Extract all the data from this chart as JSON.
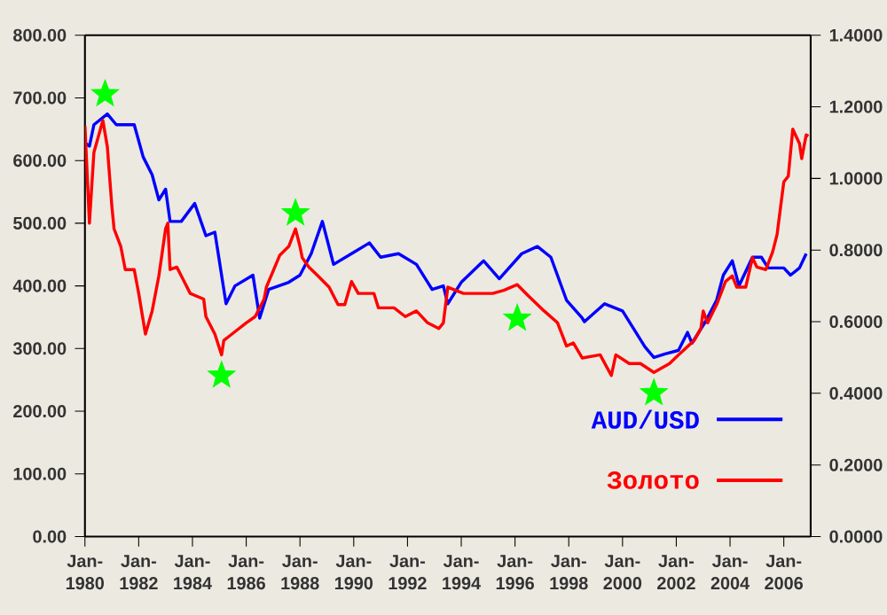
{
  "chart_data": {
    "type": "line",
    "xlim": [
      "1980-01",
      "2007-01"
    ],
    "xticks": [
      {
        "value": "1980-01",
        "label": "Jan-1980"
      },
      {
        "value": "1982-01",
        "label": "Jan-1982"
      },
      {
        "value": "1984-01",
        "label": "Jan-1984"
      },
      {
        "value": "1986-01",
        "label": "Jan-1986"
      },
      {
        "value": "1988-01",
        "label": "Jan-1988"
      },
      {
        "value": "1990-01",
        "label": "Jan-1990"
      },
      {
        "value": "1992-01",
        "label": "Jan-1992"
      },
      {
        "value": "1994-01",
        "label": "Jan-1994"
      },
      {
        "value": "1996-01",
        "label": "Jan-1996"
      },
      {
        "value": "1998-01",
        "label": "Jan-1998"
      },
      {
        "value": "2000-01",
        "label": "Jan-2000"
      },
      {
        "value": "2002-01",
        "label": "Jan-2002"
      },
      {
        "value": "2004-01",
        "label": "Jan-2004"
      },
      {
        "value": "2006-01",
        "label": "Jan-2006"
      }
    ],
    "ylim": [
      0,
      800
    ],
    "yticks": [
      {
        "value": 0,
        "label": "0.00"
      },
      {
        "value": 100,
        "label": "100.00"
      },
      {
        "value": 200,
        "label": "200.00"
      },
      {
        "value": 300,
        "label": "300.00"
      },
      {
        "value": 400,
        "label": "400.00"
      },
      {
        "value": 500,
        "label": "500.00"
      },
      {
        "value": 600,
        "label": "600.00"
      },
      {
        "value": 700,
        "label": "700.00"
      },
      {
        "value": 800,
        "label": "800.00"
      }
    ],
    "y2lim": [
      0,
      1.4
    ],
    "y2ticks": [
      {
        "value": 0,
        "label": "0.0000"
      },
      {
        "value": 0.2,
        "label": "0.2000"
      },
      {
        "value": 0.4,
        "label": "0.4000"
      },
      {
        "value": 0.6,
        "label": "0.6000"
      },
      {
        "value": 0.8,
        "label": "0.8000"
      },
      {
        "value": 1.0,
        "label": "1.0000"
      },
      {
        "value": 1.2,
        "label": "1.2000"
      },
      {
        "value": 1.4,
        "label": "1.4000"
      }
    ],
    "legend": "bottom right",
    "grid": false,
    "series": [
      {
        "name": "AUD/USD",
        "color": "#0000ff",
        "axis": "y2",
        "x": [
          "1980-01",
          "1980-03",
          "1980-05",
          "1980-11",
          "1981-03",
          "1981-11",
          "1982-03",
          "1982-07",
          "1982-10",
          "1983-01",
          "1983-03",
          "1983-08",
          "1984-02",
          "1984-07",
          "1984-11",
          "1985-04",
          "1985-08",
          "1986-04",
          "1986-07",
          "1986-11",
          "1987-08",
          "1988-01",
          "1988-06",
          "1988-11",
          "1989-04",
          "1989-12",
          "1990-08",
          "1991-01",
          "1991-09",
          "1992-05",
          "1992-12",
          "1993-05",
          "1993-07",
          "1994-01",
          "1994-11",
          "1995-06",
          "1996-04",
          "1996-11",
          "1997-05",
          "1997-12",
          "1998-07",
          "1998-08",
          "1999-05",
          "2000-01",
          "2000-06",
          "2000-11",
          "2001-03",
          "2001-08",
          "2002-02",
          "2002-06",
          "2002-08",
          "2003-02",
          "2003-07",
          "2003-10",
          "2004-02",
          "2004-05",
          "2004-11",
          "2005-03",
          "2005-06",
          "2006-01",
          "2006-04",
          "2006-08",
          "2006-11"
        ],
        "values": [
          1.1,
          1.09,
          1.15,
          1.18,
          1.15,
          1.15,
          1.06,
          1.01,
          0.94,
          0.97,
          0.88,
          0.88,
          0.93,
          0.84,
          0.85,
          0.65,
          0.7,
          0.73,
          0.61,
          0.69,
          0.71,
          0.73,
          0.79,
          0.88,
          0.76,
          0.79,
          0.82,
          0.78,
          0.79,
          0.76,
          0.69,
          0.7,
          0.65,
          0.71,
          0.77,
          0.72,
          0.79,
          0.81,
          0.78,
          0.66,
          0.61,
          0.6,
          0.65,
          0.63,
          0.58,
          0.53,
          0.5,
          0.51,
          0.52,
          0.57,
          0.54,
          0.6,
          0.66,
          0.73,
          0.77,
          0.7,
          0.78,
          0.78,
          0.75,
          0.75,
          0.73,
          0.75,
          0.79
        ]
      },
      {
        "name": "Золото",
        "color": "#ff0000",
        "x": [
          "1980-01",
          "1980-03",
          "1980-05",
          "1980-09",
          "1980-11",
          "1981-01",
          "1981-02",
          "1981-05",
          "1981-07",
          "1981-11",
          "1982-01",
          "1982-04",
          "1982-07",
          "1982-10",
          "1983-01",
          "1983-02",
          "1983-03",
          "1983-06",
          "1983-08",
          "1983-12",
          "1984-06",
          "1984-07",
          "1984-11",
          "1985-02",
          "1985-03",
          "1985-08",
          "1986-01",
          "1986-05",
          "1986-09",
          "1986-10",
          "1987-04",
          "1987-08",
          "1987-11",
          "1988-01",
          "1988-02",
          "1988-05",
          "1988-09",
          "1989-02",
          "1989-06",
          "1989-09",
          "1989-12",
          "1990-03",
          "1990-10",
          "1990-12",
          "1991-07",
          "1991-12",
          "1992-05",
          "1992-10",
          "1993-03",
          "1993-05",
          "1993-07",
          "1994-02",
          "1994-07",
          "1995-03",
          "1995-08",
          "1996-02",
          "1996-07",
          "1997-02",
          "1997-08",
          "1997-12",
          "1998-03",
          "1998-07",
          "1999-03",
          "1999-08",
          "1999-10",
          "2000-04",
          "2000-09",
          "2001-03",
          "2001-10",
          "2002-02",
          "2002-09",
          "2002-12",
          "2003-01",
          "2003-03",
          "2003-07",
          "2003-11",
          "2004-02",
          "2004-04",
          "2004-08",
          "2004-11",
          "2005-01",
          "2005-05",
          "2005-08",
          "2005-10",
          "2006-01",
          "2006-03",
          "2006-05",
          "2006-08",
          "2006-09",
          "2006-11",
          "2006-12"
        ],
        "values": [
          655,
          500,
          613,
          664,
          622,
          528,
          491,
          463,
          426,
          426,
          388,
          323,
          360,
          416,
          491,
          500,
          426,
          430,
          416,
          388,
          379,
          351,
          323,
          290,
          313,
          327,
          341,
          351,
          379,
          398,
          449,
          463,
          491,
          463,
          445,
          430,
          416,
          398,
          370,
          370,
          407,
          388,
          388,
          365,
          365,
          351,
          360,
          341,
          332,
          341,
          398,
          388,
          388,
          388,
          393,
          402,
          384,
          360,
          341,
          304,
          309,
          285,
          290,
          257,
          290,
          276,
          276,
          262,
          276,
          290,
          313,
          332,
          360,
          341,
          370,
          407,
          416,
          398,
          398,
          445,
          430,
          426,
          454,
          482,
          566,
          575,
          650,
          627,
          603,
          641,
          639
        ]
      },
      {
        "type": "scatter",
        "marker": "star",
        "color": "#00ff00",
        "x": [
          "1980-10",
          "1985-02",
          "1987-11",
          "1996-02",
          "2001-03"
        ],
        "values": [
          706,
          257,
          516,
          348,
          229
        ]
      }
    ]
  }
}
